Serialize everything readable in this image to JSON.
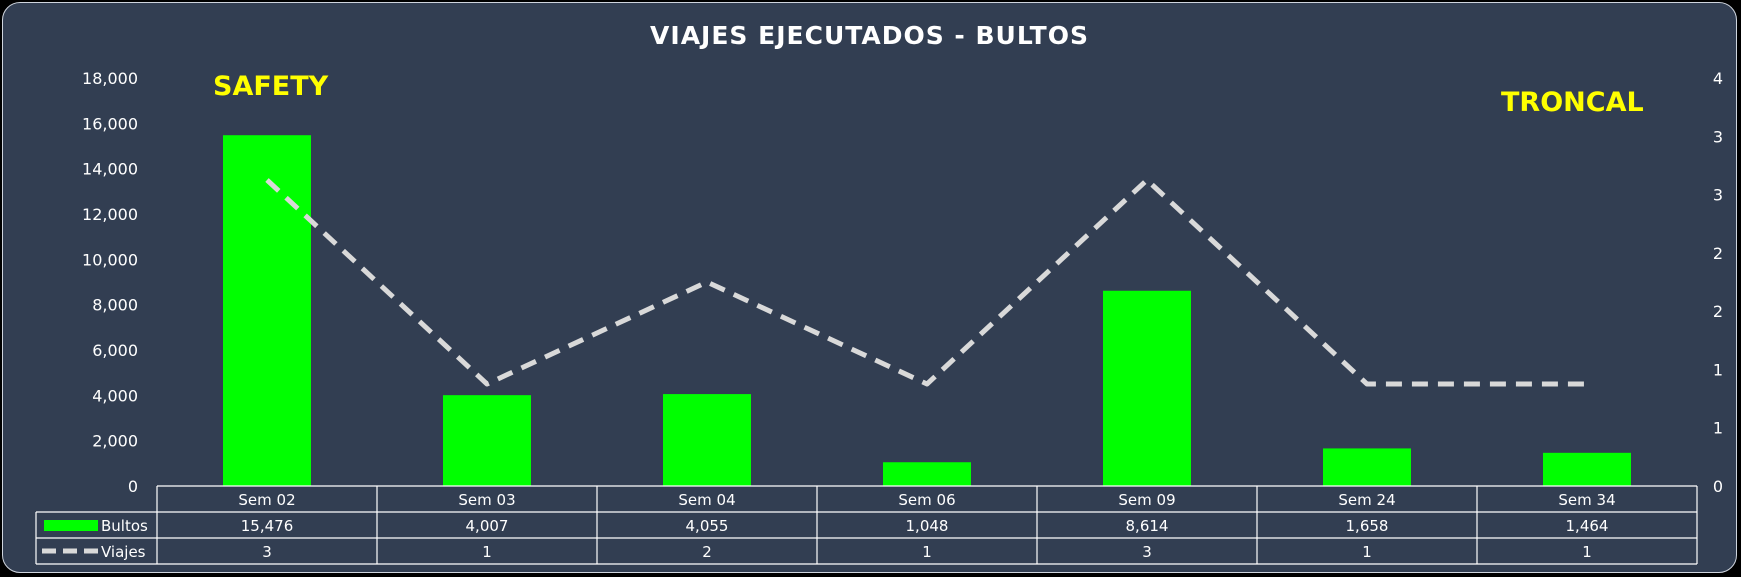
{
  "chart_data": {
    "type": "bar",
    "title": "VIAJES EJECUTADOS - BULTOS",
    "annotations": [
      "SAFETY",
      "TRONCAL"
    ],
    "categories": [
      "Sem 02",
      "Sem 03",
      "Sem 04",
      "Sem 06",
      "Sem 09",
      "Sem 24",
      "Sem 34"
    ],
    "series": [
      {
        "name": "Bultos",
        "type": "bar",
        "axis": "left",
        "color": "#00ff00",
        "values": [
          15476,
          4007,
          4055,
          1048,
          8614,
          1658,
          1464
        ],
        "labels": [
          "15,476",
          "4,007",
          "4,055",
          "1,048",
          "8,614",
          "1,658",
          "1,464"
        ]
      },
      {
        "name": "Viajes",
        "type": "line",
        "axis": "right",
        "color": "#d9d9d9",
        "style": "dashed",
        "values": [
          3,
          1,
          2,
          1,
          3,
          1,
          1
        ],
        "labels": [
          "3",
          "1",
          "2",
          "1",
          "3",
          "1",
          "1"
        ]
      }
    ],
    "y_left": {
      "range": [
        0,
        18000
      ],
      "ticks": [
        "0",
        "2,000",
        "4,000",
        "6,000",
        "8,000",
        "10,000",
        "12,000",
        "14,000",
        "16,000",
        "18,000"
      ]
    },
    "y_right": {
      "range": [
        0,
        4
      ],
      "ticks": [
        "0",
        "1",
        "1",
        "2",
        "2",
        "3",
        "3",
        "4"
      ]
    },
    "data_table": true,
    "legend": "data-table"
  }
}
